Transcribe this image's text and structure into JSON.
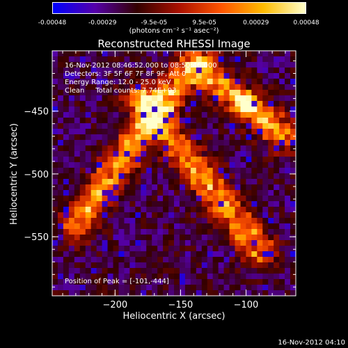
{
  "colorbar": {
    "tick_labels": [
      "-0.00048",
      "-0.00029",
      "-9.5e-05",
      "9.5e-05",
      "0.00029",
      "0.00048"
    ],
    "tick_values": [
      -0.00048,
      -0.00029,
      -9.5e-05,
      9.5e-05,
      0.00029,
      0.00048
    ],
    "min": -0.00048,
    "max": 0.00048,
    "units": "(photons cm⁻² s⁻¹ asec⁻²)",
    "colormap": [
      "#0000ff",
      "#5500a8",
      "#330000",
      "#aa1100",
      "#ff5500",
      "#ffbb00",
      "#ffffcc"
    ]
  },
  "chart_data": {
    "type": "heatmap",
    "title": "Reconstructed RHESSI Image",
    "xlabel": "Heliocentric X (arcsec)",
    "ylabel": "Heliocentric Y (arcsec)",
    "xlim": [
      -248,
      -62
    ],
    "ylim": [
      -597,
      -402
    ],
    "xticks": [
      -200,
      -150,
      -100
    ],
    "yticks": [
      -450,
      -500,
      -550
    ],
    "annotations": [
      "16-Nov-2012 08:46:52.000 to 08:50:46.000",
      "Detectors: 3F 5F 6F 7F 8F 9F, Att 0",
      "Energy Range: 12.0 - 25.0 keV",
      "Clean     Total counts: 7.74E+03"
    ],
    "peak_label": "Position of Peak = [-101,-444]",
    "peak_position": [
      -101,
      -444
    ],
    "bright_ridges": [
      {
        "from": [
          -230,
          -540
        ],
        "to": [
          -140,
          -410
        ]
      },
      {
        "from": [
          -180,
          -440
        ],
        "to": [
          -90,
          -560
        ]
      },
      {
        "from": [
          -130,
          -420
        ],
        "to": [
          -70,
          -470
        ]
      }
    ],
    "grid": false
  },
  "footer": {
    "timestamp": "16-Nov-2012 04:10"
  }
}
